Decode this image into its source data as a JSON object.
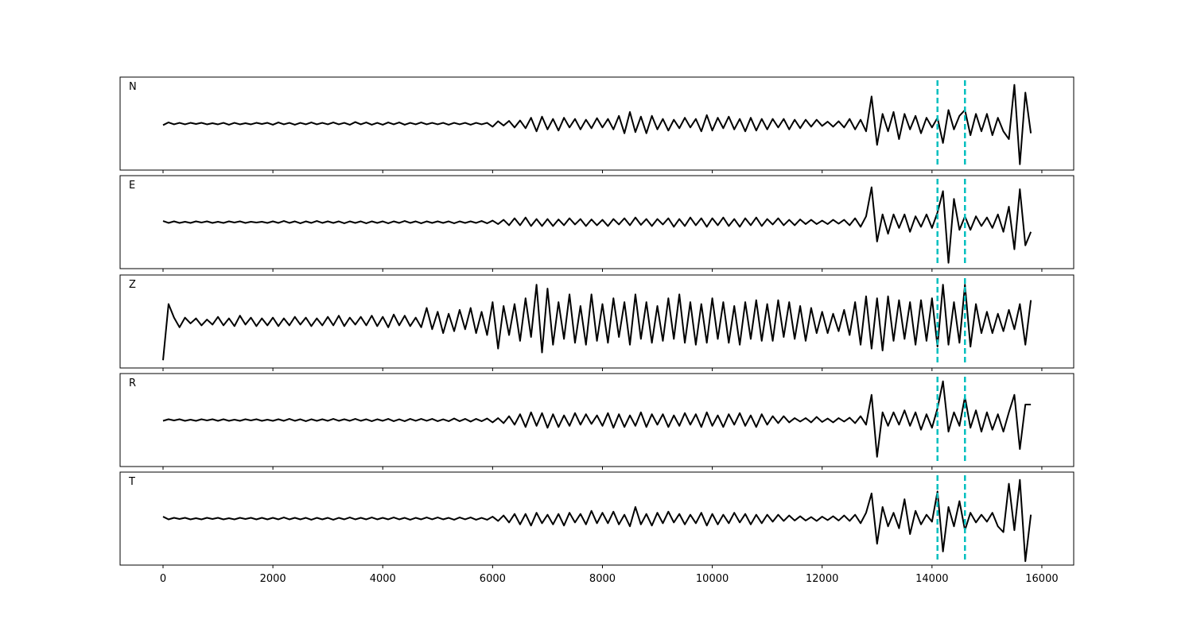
{
  "chart_data": {
    "type": "line",
    "x": [
      0,
      100,
      200,
      300,
      400,
      500,
      600,
      700,
      800,
      900,
      1000,
      1100,
      1200,
      1300,
      1400,
      1500,
      1600,
      1700,
      1800,
      1900,
      2000,
      2100,
      2200,
      2300,
      2400,
      2500,
      2600,
      2700,
      2800,
      2900,
      3000,
      3100,
      3200,
      3300,
      3400,
      3500,
      3600,
      3700,
      3800,
      3900,
      4000,
      4100,
      4200,
      4300,
      4400,
      4500,
      4600,
      4700,
      4800,
      4900,
      5000,
      5100,
      5200,
      5300,
      5400,
      5500,
      5600,
      5700,
      5800,
      5900,
      6000,
      6100,
      6200,
      6300,
      6400,
      6500,
      6600,
      6700,
      6800,
      6900,
      7000,
      7100,
      7200,
      7300,
      7400,
      7500,
      7600,
      7700,
      7800,
      7900,
      8000,
      8100,
      8200,
      8300,
      8400,
      8500,
      8600,
      8700,
      8800,
      8900,
      9000,
      9100,
      9200,
      9300,
      9400,
      9500,
      9600,
      9700,
      9800,
      9900,
      10000,
      10100,
      10200,
      10300,
      10400,
      10500,
      10600,
      10700,
      10800,
      10900,
      11000,
      11100,
      11200,
      11300,
      11400,
      11500,
      11600,
      11700,
      11800,
      11900,
      12000,
      12100,
      12200,
      12300,
      12400,
      12500,
      12600,
      12700,
      12800,
      12900,
      13000,
      13100,
      13200,
      13300,
      13400,
      13500,
      13600,
      13700,
      13800,
      13900,
      14000,
      14100,
      14200,
      14300,
      14400,
      14500,
      14600,
      14700,
      14800,
      14900,
      15000,
      15100,
      15200,
      15300,
      15400,
      15500,
      15600,
      15700,
      15800
    ],
    "series": [
      {
        "name": "N",
        "color": "#000000",
        "values": [
          -0.04,
          0.03,
          -0.02,
          0.02,
          -0.02,
          0.02,
          -0.01,
          0.02,
          -0.02,
          0.01,
          -0.02,
          0.02,
          -0.03,
          0.02,
          -0.02,
          0.01,
          -0.02,
          0.02,
          -0.01,
          0.02,
          -0.03,
          0.03,
          -0.02,
          0.02,
          -0.03,
          0.02,
          -0.02,
          0.03,
          -0.02,
          0.02,
          -0.02,
          0.03,
          -0.02,
          0.02,
          -0.03,
          0.04,
          -0.02,
          0.03,
          -0.03,
          0.02,
          -0.03,
          0.03,
          -0.02,
          0.03,
          -0.03,
          0.02,
          -0.02,
          0.03,
          -0.02,
          0.02,
          -0.02,
          0.02,
          -0.03,
          0.02,
          -0.02,
          0.02,
          -0.03,
          0.02,
          -0.02,
          0.02,
          -0.08,
          0.06,
          -0.05,
          0.07,
          -0.1,
          0.08,
          -0.12,
          0.15,
          -0.2,
          0.18,
          -0.15,
          0.12,
          -0.18,
          0.15,
          -0.1,
          0.12,
          -0.15,
          0.1,
          -0.12,
          0.14,
          -0.1,
          0.12,
          -0.15,
          0.2,
          -0.25,
          0.3,
          -0.22,
          0.18,
          -0.25,
          0.2,
          -0.15,
          0.12,
          -0.18,
          0.1,
          -0.12,
          0.15,
          -0.1,
          0.12,
          -0.2,
          0.22,
          -0.18,
          0.15,
          -0.12,
          0.18,
          -0.15,
          0.12,
          -0.2,
          0.15,
          -0.18,
          0.12,
          -0.15,
          0.12,
          -0.1,
          0.12,
          -0.15,
          0.1,
          -0.12,
          0.1,
          -0.08,
          0.1,
          -0.06,
          0.05,
          -0.08,
          0.06,
          -0.1,
          0.12,
          -0.15,
          0.1,
          -0.2,
          0.7,
          -0.55,
          0.25,
          -0.2,
          0.3,
          -0.4,
          0.25,
          -0.15,
          0.2,
          -0.25,
          0.15,
          -0.1,
          0.15,
          -0.5,
          0.35,
          -0.15,
          0.2,
          0.35,
          -0.3,
          0.25,
          -0.2,
          0.25,
          -0.3,
          0.15,
          -0.2,
          -0.4,
          1.0,
          -1.05,
          0.8,
          -0.25
        ]
      },
      {
        "name": "E",
        "color": "#000000",
        "values": [
          0.03,
          -0.02,
          0.02,
          -0.02,
          0.01,
          -0.02,
          0.02,
          -0.01,
          0.02,
          -0.02,
          0.01,
          -0.02,
          0.02,
          -0.01,
          0.02,
          -0.02,
          0.01,
          -0.01,
          0.01,
          -0.02,
          0.02,
          -0.02,
          0.03,
          -0.02,
          0.02,
          -0.03,
          0.02,
          -0.02,
          0.03,
          -0.02,
          0.02,
          -0.02,
          0.02,
          -0.03,
          0.02,
          -0.02,
          0.02,
          -0.03,
          0.02,
          -0.02,
          0.02,
          -0.03,
          0.02,
          -0.02,
          0.03,
          -0.02,
          0.02,
          -0.03,
          0.02,
          -0.02,
          0.02,
          -0.02,
          0.02,
          -0.03,
          0.02,
          -0.02,
          0.02,
          -0.02,
          0.03,
          -0.03,
          0.04,
          -0.05,
          0.06,
          -0.08,
          0.1,
          -0.08,
          0.12,
          -0.1,
          0.08,
          -0.1,
          0.08,
          -0.1,
          0.07,
          -0.08,
          0.1,
          -0.06,
          0.08,
          -0.1,
          0.07,
          -0.08,
          0.06,
          -0.1,
          0.08,
          -0.06,
          0.1,
          -0.08,
          0.12,
          -0.07,
          0.08,
          -0.1,
          0.08,
          -0.06,
          0.1,
          -0.12,
          0.08,
          -0.1,
          0.12,
          -0.08,
          0.1,
          -0.12,
          0.1,
          -0.08,
          0.12,
          -0.1,
          0.08,
          -0.12,
          0.1,
          -0.08,
          0.12,
          -0.1,
          0.08,
          -0.06,
          0.1,
          -0.08,
          0.06,
          -0.08,
          0.07,
          -0.05,
          0.06,
          -0.05,
          0.04,
          -0.05,
          0.06,
          -0.04,
          0.06,
          -0.08,
          0.1,
          -0.12,
          0.15,
          0.9,
          -0.5,
          0.2,
          -0.3,
          0.2,
          -0.15,
          0.2,
          -0.25,
          0.15,
          -0.12,
          0.2,
          -0.15,
          0.25,
          0.8,
          -1.05,
          0.6,
          -0.2,
          0.15,
          -0.2,
          0.15,
          -0.1,
          0.12,
          -0.15,
          0.2,
          -0.25,
          0.4,
          -0.7,
          0.85,
          -0.6,
          -0.25
        ]
      },
      {
        "name": "Z",
        "color": "#000000",
        "values": [
          -1.0,
          0.45,
          0.1,
          -0.15,
          0.1,
          -0.05,
          0.08,
          -0.1,
          0.05,
          -0.08,
          0.12,
          -0.1,
          0.08,
          -0.12,
          0.15,
          -0.08,
          0.1,
          -0.12,
          0.08,
          -0.1,
          0.1,
          -0.12,
          0.08,
          -0.1,
          0.12,
          -0.08,
          0.1,
          -0.12,
          0.08,
          -0.1,
          0.12,
          -0.1,
          0.15,
          -0.12,
          0.1,
          -0.08,
          0.12,
          -0.1,
          0.15,
          -0.12,
          0.12,
          -0.15,
          0.18,
          -0.1,
          0.15,
          -0.12,
          0.1,
          -0.15,
          0.35,
          -0.2,
          0.25,
          -0.3,
          0.2,
          -0.25,
          0.3,
          -0.2,
          0.35,
          -0.3,
          0.25,
          -0.35,
          0.5,
          -0.7,
          0.4,
          -0.35,
          0.45,
          -0.5,
          0.6,
          -0.4,
          0.95,
          -0.8,
          0.85,
          -0.6,
          0.5,
          -0.45,
          0.7,
          -0.55,
          0.4,
          -0.6,
          0.7,
          -0.5,
          0.45,
          -0.55,
          0.6,
          -0.4,
          0.5,
          -0.6,
          0.7,
          -0.45,
          0.5,
          -0.55,
          0.4,
          -0.5,
          0.6,
          -0.45,
          0.7,
          -0.55,
          0.5,
          -0.6,
          0.45,
          -0.55,
          0.6,
          -0.45,
          0.5,
          -0.55,
          0.4,
          -0.6,
          0.5,
          -0.45,
          0.55,
          -0.5,
          0.45,
          -0.5,
          0.55,
          -0.4,
          0.5,
          -0.45,
          0.4,
          -0.5,
          0.35,
          -0.3,
          0.25,
          -0.3,
          0.2,
          -0.25,
          0.3,
          -0.35,
          0.5,
          -0.6,
          0.65,
          -0.7,
          0.6,
          -0.75,
          0.65,
          -0.5,
          0.55,
          -0.45,
          0.5,
          -0.6,
          0.55,
          -0.5,
          0.6,
          -0.65,
          0.95,
          -0.6,
          0.5,
          -0.55,
          0.95,
          -0.65,
          0.45,
          -0.3,
          0.25,
          -0.3,
          0.2,
          -0.25,
          0.3,
          -0.2,
          0.45,
          -0.6,
          0.55
        ]
      },
      {
        "name": "R",
        "color": "#000000",
        "values": [
          -0.02,
          0.02,
          -0.01,
          0.02,
          -0.02,
          0.01,
          -0.02,
          0.02,
          -0.01,
          0.02,
          -0.02,
          0.02,
          -0.02,
          0.01,
          -0.02,
          0.02,
          -0.01,
          0.02,
          -0.02,
          0.01,
          -0.02,
          0.02,
          -0.02,
          0.03,
          -0.02,
          0.02,
          -0.03,
          0.02,
          -0.02,
          0.02,
          -0.02,
          0.03,
          -0.02,
          0.02,
          -0.02,
          0.03,
          -0.02,
          0.02,
          -0.03,
          0.02,
          -0.02,
          0.03,
          -0.03,
          0.02,
          -0.03,
          0.03,
          -0.02,
          0.03,
          -0.02,
          0.03,
          -0.03,
          0.02,
          -0.03,
          0.04,
          -0.03,
          0.03,
          -0.04,
          0.03,
          -0.03,
          0.04,
          -0.06,
          0.05,
          -0.08,
          0.1,
          -0.12,
          0.15,
          -0.18,
          0.2,
          -0.15,
          0.18,
          -0.2,
          0.15,
          -0.18,
          0.12,
          -0.15,
          0.18,
          -0.12,
          0.15,
          -0.1,
          0.12,
          -0.15,
          0.18,
          -0.2,
          0.15,
          -0.18,
          0.12,
          -0.15,
          0.2,
          -0.18,
          0.15,
          -0.12,
          0.15,
          -0.18,
          0.12,
          -0.15,
          0.18,
          -0.12,
          0.15,
          -0.18,
          0.2,
          -0.15,
          0.12,
          -0.18,
          0.15,
          -0.12,
          0.18,
          -0.15,
          0.12,
          -0.18,
          0.15,
          -0.12,
          0.1,
          -0.08,
          0.1,
          -0.06,
          0.05,
          -0.04,
          0.05,
          -0.06,
          0.08,
          -0.05,
          0.04,
          -0.06,
          0.05,
          -0.04,
          0.06,
          -0.08,
          0.1,
          -0.12,
          0.65,
          -0.95,
          0.2,
          -0.15,
          0.2,
          -0.12,
          0.25,
          -0.15,
          0.2,
          -0.25,
          0.15,
          -0.2,
          0.3,
          1.0,
          -0.3,
          0.2,
          -0.15,
          0.6,
          -0.2,
          0.25,
          -0.3,
          0.2,
          -0.25,
          0.15,
          -0.3,
          0.2,
          0.65,
          -0.75,
          0.4,
          0.4
        ]
      },
      {
        "name": "T",
        "color": "#000000",
        "values": [
          0.05,
          -0.02,
          0.02,
          -0.01,
          0.02,
          -0.02,
          0.01,
          -0.02,
          0.02,
          -0.01,
          0.02,
          -0.02,
          0.01,
          -0.02,
          0.02,
          -0.01,
          0.02,
          -0.02,
          0.02,
          -0.02,
          0.02,
          -0.02,
          0.03,
          -0.02,
          0.02,
          -0.02,
          0.02,
          -0.03,
          0.02,
          -0.02,
          0.02,
          -0.03,
          0.02,
          -0.02,
          0.03,
          -0.02,
          0.02,
          -0.02,
          0.03,
          -0.02,
          0.02,
          -0.02,
          0.03,
          -0.02,
          0.02,
          -0.03,
          0.02,
          -0.02,
          0.03,
          -0.02,
          0.03,
          -0.02,
          0.02,
          -0.03,
          0.03,
          -0.02,
          0.03,
          -0.03,
          0.02,
          -0.03,
          0.05,
          -0.06,
          0.08,
          -0.1,
          0.12,
          -0.15,
          0.12,
          -0.18,
          0.15,
          -0.12,
          0.1,
          -0.15,
          0.12,
          -0.18,
          0.15,
          -0.1,
          0.12,
          -0.15,
          0.2,
          -0.12,
          0.15,
          -0.12,
          0.18,
          -0.15,
          0.1,
          -0.2,
          0.3,
          -0.15,
          0.12,
          -0.18,
          0.15,
          -0.12,
          0.18,
          -0.1,
          0.12,
          -0.15,
          0.1,
          -0.12,
          0.15,
          -0.18,
          0.12,
          -0.15,
          0.1,
          -0.12,
          0.15,
          -0.1,
          0.12,
          -0.15,
          0.1,
          -0.12,
          0.1,
          -0.08,
          0.1,
          -0.06,
          0.08,
          -0.05,
          0.06,
          -0.05,
          0.04,
          -0.06,
          0.05,
          -0.04,
          0.06,
          -0.05,
          0.08,
          -0.06,
          0.1,
          -0.12,
          0.15,
          0.65,
          -0.65,
          0.3,
          -0.2,
          0.15,
          -0.25,
          0.5,
          -0.4,
          0.2,
          -0.15,
          0.1,
          -0.08,
          0.7,
          -0.85,
          0.3,
          -0.2,
          0.45,
          -0.3,
          0.15,
          -0.1,
          0.1,
          -0.08,
          0.15,
          -0.2,
          -0.35,
          0.9,
          -0.3,
          1.0,
          -1.1,
          0.1
        ]
      }
    ],
    "xlim": [
      -782,
      16580
    ],
    "xticks": [
      0,
      2000,
      4000,
      6000,
      8000,
      10000,
      12000,
      14000,
      16000
    ],
    "ylim": [
      -1.2,
      1.2
    ],
    "vlines": [
      14100,
      14600
    ],
    "vline_color": "#00bfbf"
  }
}
